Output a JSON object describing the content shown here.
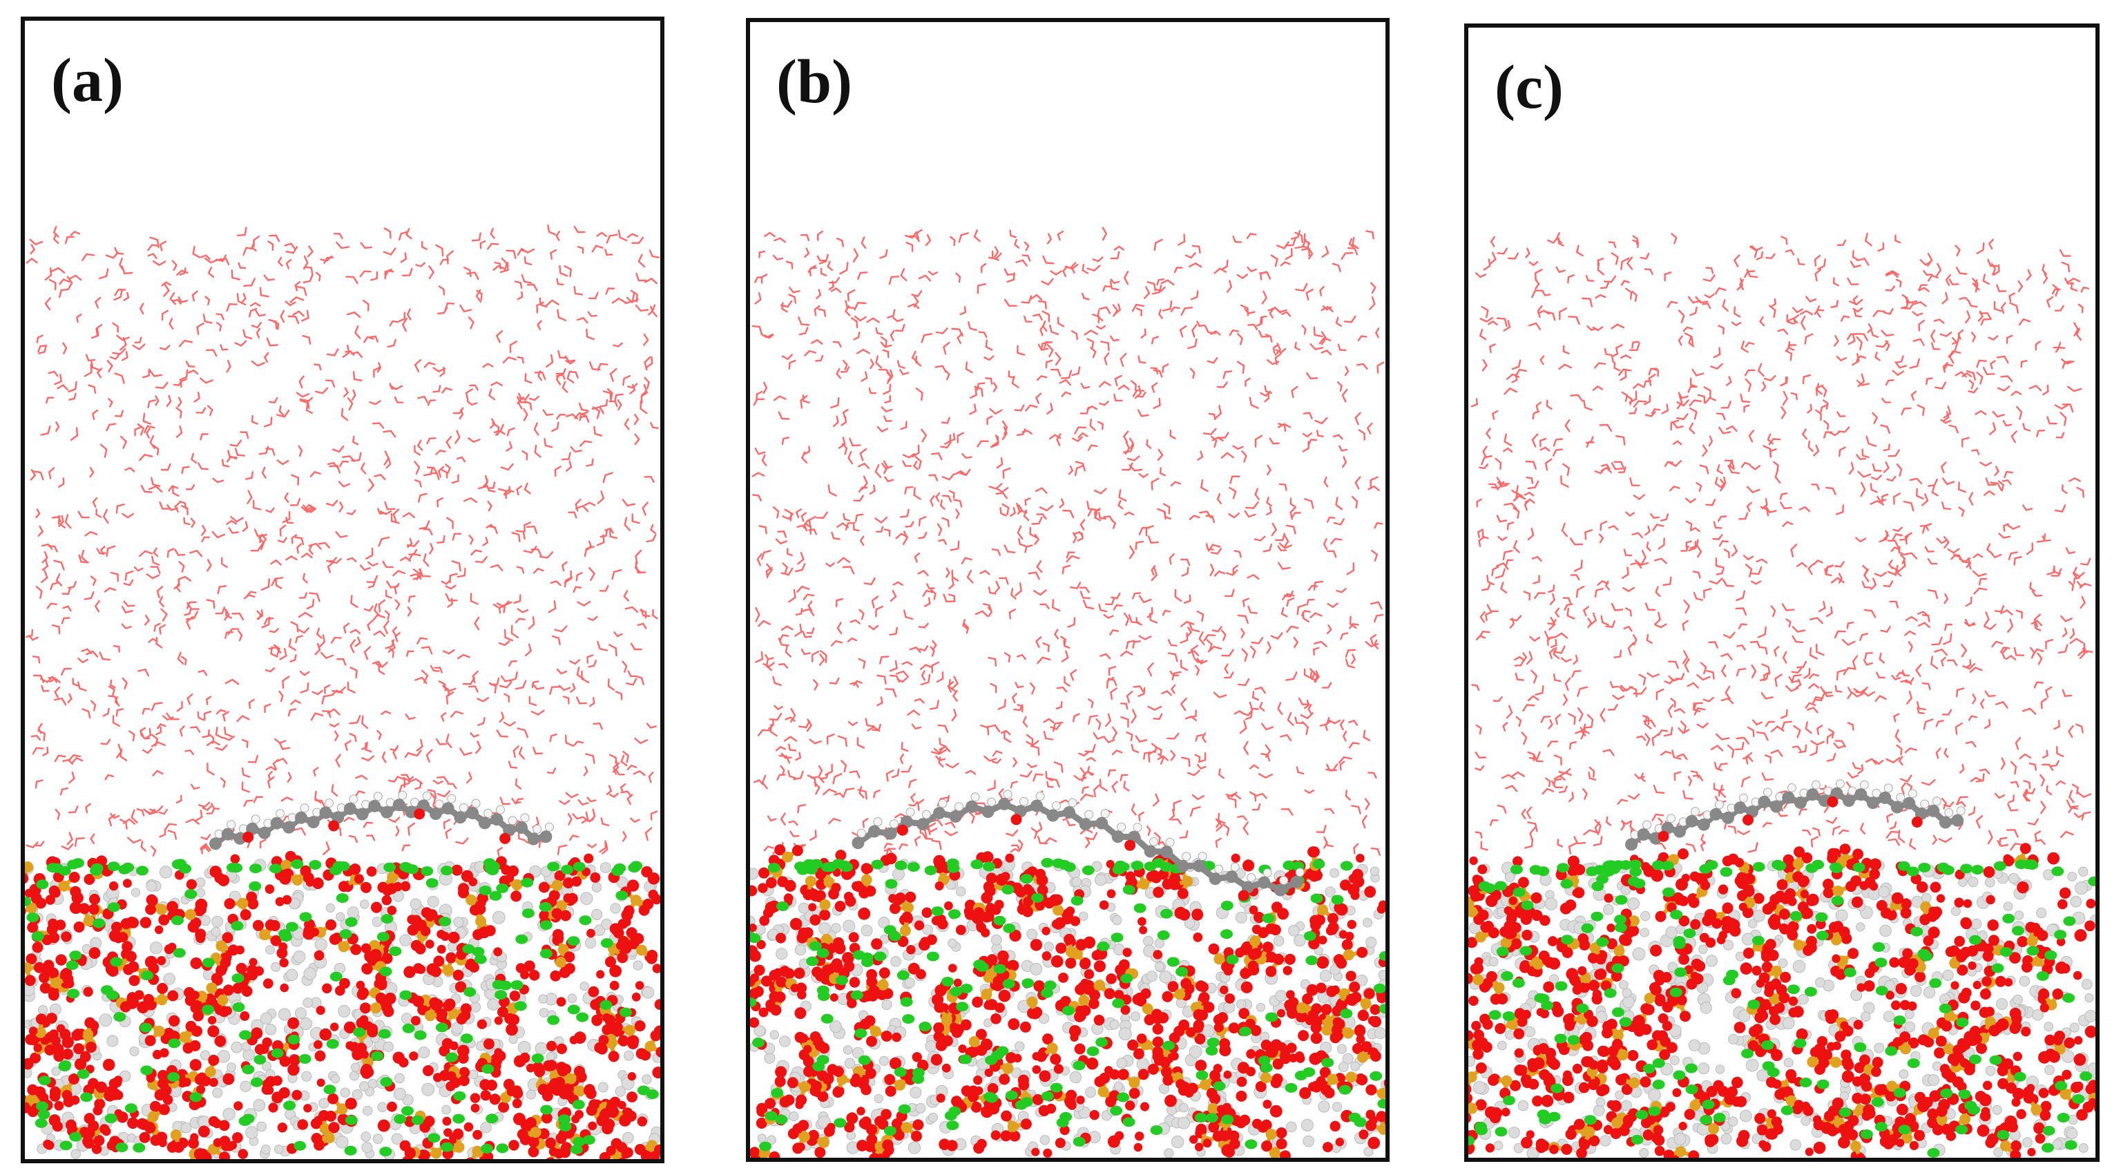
{
  "figure": {
    "panels": [
      {
        "id": "a",
        "label": "(a)"
      },
      {
        "id": "b",
        "label": "(b)"
      },
      {
        "id": "c",
        "label": "(c)"
      }
    ],
    "colors": {
      "water": "#ff4d4d",
      "oxygen": "#ee1111",
      "phosphorus": "#e0a020",
      "calcium": "#22cc22",
      "hydrogen": "#dcdcdc",
      "carbon": "#888888",
      "frame": "#111111"
    }
  }
}
